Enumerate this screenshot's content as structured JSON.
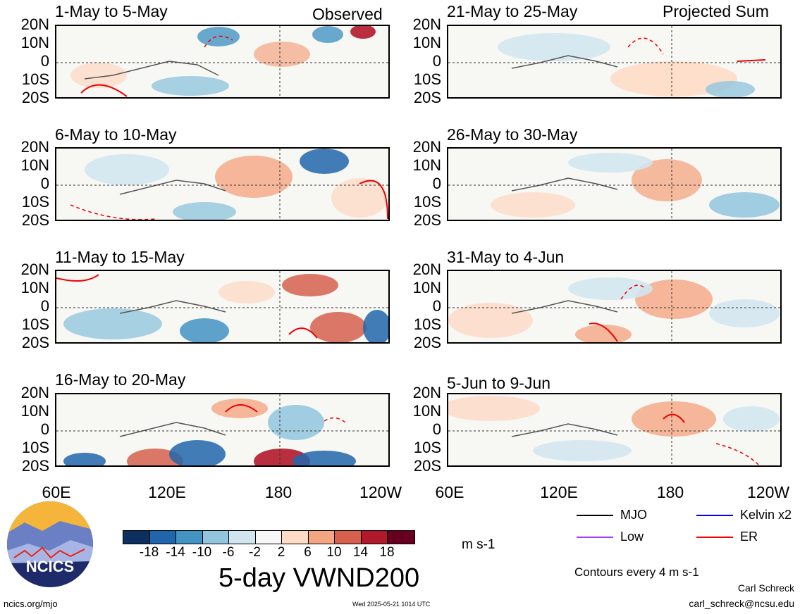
{
  "panel_labels": {
    "observed": "Observed",
    "projected": "Projected Sum"
  },
  "panels": [
    {
      "title": "1-May to 5-May"
    },
    {
      "title": "6-May to 10-May"
    },
    {
      "title": "11-May to 15-May"
    },
    {
      "title": "16-May to 20-May"
    },
    {
      "title": "21-May to 25-May"
    },
    {
      "title": "26-May to 30-May"
    },
    {
      "title": "31-May to 4-Jun"
    },
    {
      "title": "5-Jun to 9-Jun"
    }
  ],
  "y_ticks": [
    "20N",
    "10N",
    "0",
    "10S",
    "20S"
  ],
  "x_ticks_left": [
    "60E",
    "120E",
    "180",
    "120W"
  ],
  "x_ticks_right": [
    "60E",
    "120E",
    "180",
    "120W"
  ],
  "colorbar": {
    "colors": [
      "#0c2f5e",
      "#2166ac",
      "#4393c3",
      "#92c5de",
      "#d1e5f0",
      "#f7f7f7",
      "#fddbc7",
      "#f4a582",
      "#d6604d",
      "#b2182b",
      "#67001f"
    ],
    "ticks": [
      "-18",
      "-14",
      "-10",
      "-6",
      "-2",
      "2",
      "6",
      "10",
      "14",
      "18"
    ],
    "unit": "m s-1"
  },
  "main_title": "5-day VWND200",
  "legend": [
    {
      "label": "MJO",
      "color": "#000000"
    },
    {
      "label": "Kelvin x2",
      "color": "#0000ff"
    },
    {
      "label": "Low",
      "color": "#a040ff"
    },
    {
      "label": "ER",
      "color": "#ff0000"
    }
  ],
  "contour_note": "Contours every 4 m s-1",
  "credit": {
    "author": "Carl Schreck",
    "email": "carl_schreck@ncsu.edu"
  },
  "footer": {
    "left": "ncics.org/mjo",
    "timestamp": "Wed 2025-05-21 1014 UTC"
  },
  "logo": {
    "text": "NCICS"
  },
  "chart_data": {
    "type": "heatmap",
    "variable": "5-day VWND200",
    "units": "m s-1",
    "x_range": [
      "60E",
      "120W"
    ],
    "y_range": [
      "20S",
      "20N"
    ],
    "color_levels": [
      -18,
      -14,
      -10,
      -6,
      -2,
      2,
      6,
      10,
      14,
      18
    ]
  }
}
